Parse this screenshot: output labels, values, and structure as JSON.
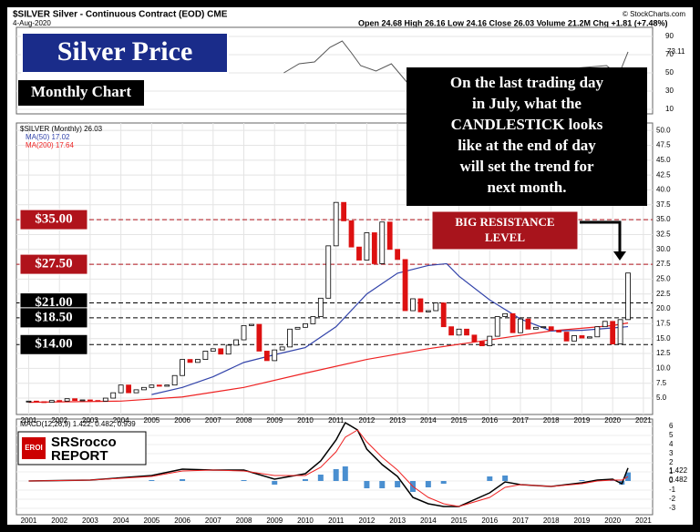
{
  "chart_data": {
    "type": "candlestick",
    "header": {
      "symbol": "$SILVER Silver - Continuous Contract (EOD) CME",
      "date": "4-Aug-2020",
      "quote": "Open 24.68  High 26.16  Low 24.16  Close 26.03  Volume 21.2M  Chg +1.81 (+7.48%)",
      "source": "© StockCharts.com"
    },
    "title": "Silver Price",
    "subtitle": "Monthly Chart",
    "annotation": [
      "On the last trading day",
      "in July, what the",
      "CANDLESTICK looks",
      "like at the end of day",
      "will set the trend for",
      "next month."
    ],
    "resistance_label": [
      "BIG RESISTANCE",
      "LEVEL"
    ],
    "logo": {
      "badge": "EROI",
      "name": "SRSrocco",
      "sub": "REPORT"
    },
    "legend": {
      "price": "$SILVER (Monthly) 26.03",
      "ma50": "MA(50) 17.02",
      "ma200": "MA(200) 17.64",
      "macd": "MACD(12,26,9) 1.422, 0.482, 0.939"
    },
    "xlim": [
      2000.6,
      2021.3
    ],
    "xticks": [
      2001,
      2002,
      2003,
      2004,
      2005,
      2006,
      2007,
      2008,
      2009,
      2010,
      2011,
      2012,
      2013,
      2014,
      2015,
      2016,
      2017,
      2018,
      2019,
      2020,
      2021
    ],
    "ylim": [
      2.25,
      51.25
    ],
    "yticks": [
      {
        "value": 5,
        "label": "5.0"
      },
      {
        "value": 7.5,
        "label": "7.5"
      },
      {
        "value": 10,
        "label": "10.0"
      },
      {
        "value": 12.5,
        "label": "12.5"
      },
      {
        "value": 15,
        "label": "15.0"
      },
      {
        "value": 17.5,
        "label": "17.5"
      },
      {
        "value": 20,
        "label": "20.0"
      },
      {
        "value": 22.5,
        "label": "22.5"
      },
      {
        "value": 25,
        "label": "25.0"
      },
      {
        "value": 27.5,
        "label": "27.5"
      },
      {
        "value": 30,
        "label": "30.0"
      },
      {
        "value": 32.5,
        "label": "32.5"
      },
      {
        "value": 35,
        "label": "35.0"
      },
      {
        "value": 37.5,
        "label": "37.5"
      },
      {
        "value": 40,
        "label": "40.0"
      },
      {
        "value": 42.5,
        "label": "42.5"
      },
      {
        "value": 45,
        "label": "45.0"
      },
      {
        "value": 47.5,
        "label": "47.5"
      },
      {
        "value": 50,
        "label": "50.0"
      }
    ],
    "levels": [
      {
        "value": 35,
        "label": "$35.00",
        "color": "#b0131b"
      },
      {
        "value": 27.5,
        "label": "$27.50",
        "color": "#b0131b"
      },
      {
        "value": 21,
        "label": "$21.00",
        "color": "#000000"
      },
      {
        "value": 18.5,
        "label": "$18.50",
        "color": "#000000"
      },
      {
        "value": 14,
        "label": "$14.00",
        "color": "#000000"
      }
    ],
    "price": {
      "x": [
        2001,
        2001.25,
        2001.5,
        2001.75,
        2002,
        2002.25,
        2002.5,
        2002.75,
        2003,
        2003.25,
        2003.5,
        2003.75,
        2004,
        2004.25,
        2004.5,
        2004.75,
        2005,
        2005.25,
        2005.5,
        2005.75,
        2006,
        2006.25,
        2006.5,
        2006.75,
        2007,
        2007.25,
        2007.5,
        2007.75,
        2008,
        2008.25,
        2008.5,
        2008.75,
        2009,
        2009.25,
        2009.5,
        2009.75,
        2010,
        2010.25,
        2010.5,
        2010.75,
        2011,
        2011.25,
        2011.5,
        2011.75,
        2012,
        2012.25,
        2012.5,
        2012.75,
        2013,
        2013.25,
        2013.5,
        2013.75,
        2014,
        2014.25,
        2014.5,
        2014.75,
        2015,
        2015.25,
        2015.5,
        2015.75,
        2016,
        2016.25,
        2016.5,
        2016.75,
        2017,
        2017.25,
        2017.5,
        2017.75,
        2018,
        2018.25,
        2018.5,
        2018.75,
        2019,
        2019.25,
        2019.5,
        2019.75,
        2020,
        2020.25,
        2020.5
      ],
      "closes": [
        4.5,
        4.4,
        4.3,
        4.6,
        4.5,
        4.9,
        4.6,
        4.7,
        4.6,
        4.5,
        5.0,
        5.9,
        7.2,
        5.9,
        6.4,
        6.8,
        7.2,
        7.0,
        7.2,
        8.8,
        11.5,
        11.0,
        11.5,
        12.9,
        13.3,
        12.4,
        13.9,
        14.8,
        17.2,
        17.4,
        12.9,
        11.3,
        13.1,
        13.6,
        16.6,
        16.9,
        17.5,
        18.7,
        21.8,
        30.6,
        37.9,
        34.8,
        30.4,
        28.2,
        32.8,
        27.6,
        34.6,
        30.0,
        28.3,
        19.7,
        21.7,
        19.5,
        19.7,
        21.0,
        17.0,
        15.6,
        16.6,
        15.6,
        14.5,
        13.8,
        15.4,
        18.7,
        19.2,
        16.0,
        18.3,
        16.6,
        16.9,
        17.0,
        16.4,
        16.1,
        14.6,
        15.5,
        15.1,
        15.3,
        17.0,
        17.9,
        14.1,
        18.2,
        26.03
      ]
    },
    "ma50": {
      "x": [
        2005,
        2006,
        2007,
        2008,
        2009,
        2010,
        2011,
        2012,
        2013,
        2014,
        2014.6,
        2015,
        2016,
        2017,
        2018,
        2019,
        2020,
        2020.5
      ],
      "values": [
        5.6,
        6.8,
        8.6,
        11,
        12.3,
        13.5,
        17,
        22.5,
        26,
        27.3,
        27.6,
        25.5,
        21.5,
        18.3,
        16.3,
        16.4,
        16.8,
        17.02
      ]
    },
    "ma200": {
      "x": [
        2001,
        2004,
        2006,
        2008,
        2010,
        2012,
        2014,
        2016,
        2018,
        2020,
        2020.5
      ],
      "values": [
        4.3,
        4.5,
        5.2,
        6.8,
        9.2,
        11.5,
        13.3,
        14.8,
        16.3,
        17.2,
        17.64
      ]
    },
    "rsi": {
      "ylim": [
        5,
        100
      ],
      "yticks": [
        90,
        70,
        50,
        30,
        10
      ],
      "last": "73.11",
      "x": [
        2009.3,
        2009.8,
        2010.3,
        2010.8,
        2011.2,
        2011.5,
        2011.8,
        2012.3,
        2012.8,
        2013.3,
        2019.8,
        2020.2,
        2020.5
      ],
      "values": [
        50,
        60,
        62,
        78,
        85,
        72,
        58,
        52,
        60,
        40,
        58,
        48,
        73.11
      ]
    },
    "macd": {
      "ylim": [
        -3.7,
        6.8
      ],
      "yticks": [
        6,
        5,
        4,
        3,
        2,
        1,
        0,
        -1,
        -2,
        -3
      ],
      "last_labels": [
        "1.422",
        "0.482"
      ],
      "x": [
        2001,
        2003,
        2005,
        2006,
        2007,
        2008,
        2009,
        2010,
        2010.5,
        2011,
        2011.3,
        2011.7,
        2012,
        2012.5,
        2013,
        2013.5,
        2014,
        2014.5,
        2015,
        2016,
        2016.5,
        2017,
        2018,
        2019,
        2019.5,
        2020,
        2020.3,
        2020.5
      ],
      "line": [
        0,
        0.1,
        0.6,
        1.3,
        1.2,
        1.2,
        0.2,
        0.8,
        2.2,
        4.5,
        6.4,
        5.6,
        3.5,
        1.8,
        0.5,
        -1.8,
        -2.5,
        -2.8,
        -2.8,
        -1.3,
        -0.1,
        -0.4,
        -0.6,
        -0.2,
        0.1,
        0.2,
        -0.3,
        1.422
      ],
      "signal": [
        0,
        0.1,
        0.5,
        1.1,
        1.2,
        1.1,
        0.6,
        0.6,
        1.5,
        3.2,
        4.8,
        5.6,
        4.3,
        2.6,
        1.2,
        -0.6,
        -1.8,
        -2.5,
        -2.8,
        -1.8,
        -0.7,
        -0.4,
        -0.6,
        -0.3,
        0,
        0.1,
        0.1,
        0.482
      ],
      "hist": [
        0,
        0,
        0.1,
        0.2,
        0,
        0.1,
        -0.4,
        0.2,
        0.7,
        1.3,
        1.6,
        0,
        -0.8,
        -0.8,
        -0.7,
        -1.2,
        -0.7,
        -0.3,
        0,
        0.5,
        0.6,
        0,
        0,
        0.1,
        0.1,
        0.1,
        -0.4,
        0.939
      ]
    }
  }
}
